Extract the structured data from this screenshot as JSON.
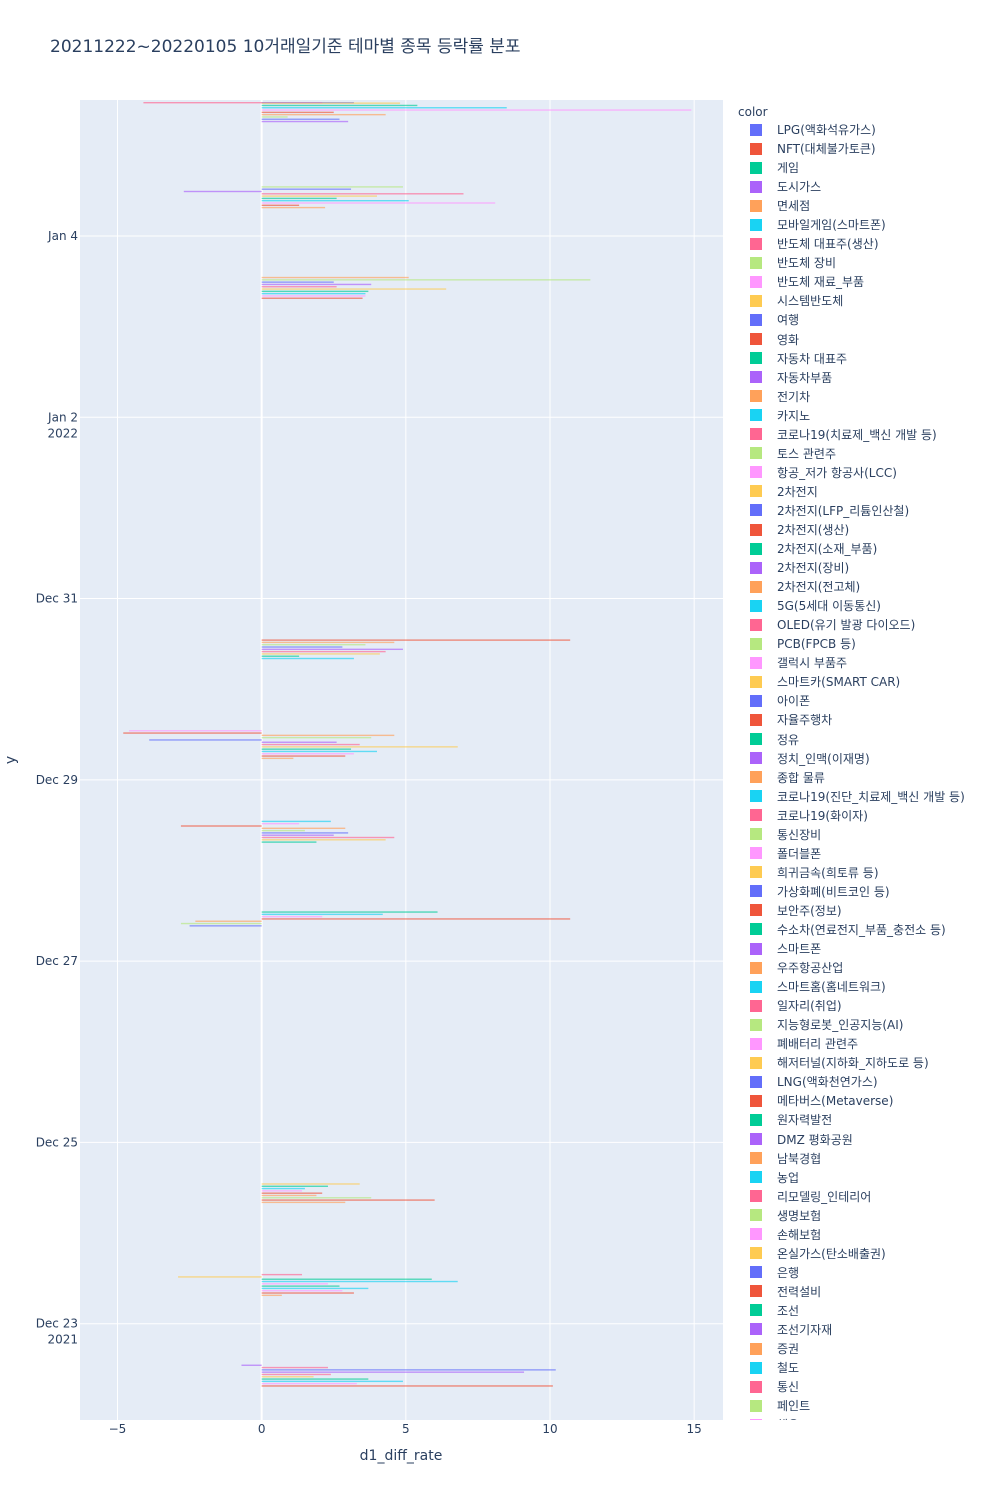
{
  "chart_data": {
    "type": "bar",
    "orientation": "horizontal",
    "title": "20211222~20220105 10거래일기준 테마별 종목 등락률 분포",
    "xlabel": "d1_diff_rate",
    "ylabel": "y",
    "xlim": [
      -6.3,
      16
    ],
    "x_ticks": [
      -5,
      0,
      5,
      10,
      15
    ],
    "y_ticks": [
      {
        "date": "2021-12-23",
        "label": "Dec 23",
        "sub": "2021"
      },
      {
        "date": "2021-12-25",
        "label": "Dec 25",
        "sub": ""
      },
      {
        "date": "2021-12-27",
        "label": "Dec 27",
        "sub": ""
      },
      {
        "date": "2021-12-29",
        "label": "Dec 29",
        "sub": ""
      },
      {
        "date": "2021-12-31",
        "label": "Dec 31",
        "sub": ""
      },
      {
        "date": "2022-01-02",
        "label": "Jan 2",
        "sub": "2022"
      },
      {
        "date": "2022-01-04",
        "label": "Jan 4",
        "sub": ""
      }
    ],
    "ylim": [
      "2021-12-21T22:30",
      "2022-01-05T12:00"
    ],
    "legend_title": "color",
    "legend_position": "right",
    "grid": true,
    "series": [
      {
        "name": "LPG(액화석유가스)",
        "color": "#636efa"
      },
      {
        "name": "NFT(대체불가토큰)",
        "color": "#EF553B"
      },
      {
        "name": "게임",
        "color": "#00cc96"
      },
      {
        "name": "도시가스",
        "color": "#ab63fa"
      },
      {
        "name": "면세점",
        "color": "#FFA15A"
      },
      {
        "name": "모바일게임(스마트폰)",
        "color": "#19d3f3"
      },
      {
        "name": "반도체 대표주(생산)",
        "color": "#FF6692"
      },
      {
        "name": "반도체 장비",
        "color": "#B6E880"
      },
      {
        "name": "반도체 재료_부품",
        "color": "#FF97FF"
      },
      {
        "name": "시스템반도체",
        "color": "#FECB52"
      },
      {
        "name": "여행",
        "color": "#636efa"
      },
      {
        "name": "영화",
        "color": "#EF553B"
      },
      {
        "name": "자동차 대표주",
        "color": "#00cc96"
      },
      {
        "name": "자동차부품",
        "color": "#ab63fa"
      },
      {
        "name": "전기차",
        "color": "#FFA15A"
      },
      {
        "name": "카지노",
        "color": "#19d3f3"
      },
      {
        "name": "코로나19(치료제_백신 개발 등)",
        "color": "#FF6692"
      },
      {
        "name": "토스 관련주",
        "color": "#B6E880"
      },
      {
        "name": "항공_저가 항공사(LCC)",
        "color": "#FF97FF"
      },
      {
        "name": "2차전지",
        "color": "#FECB52"
      },
      {
        "name": "2차전지(LFP_리튬인산철)",
        "color": "#636efa"
      },
      {
        "name": "2차전지(생산)",
        "color": "#EF553B"
      },
      {
        "name": "2차전지(소재_부품)",
        "color": "#00cc96"
      },
      {
        "name": "2차전지(장비)",
        "color": "#ab63fa"
      },
      {
        "name": "2차전지(전고체)",
        "color": "#FFA15A"
      },
      {
        "name": "5G(5세대 이동통신)",
        "color": "#19d3f3"
      },
      {
        "name": "OLED(유기 발광 다이오드)",
        "color": "#FF6692"
      },
      {
        "name": "PCB(FPCB 등)",
        "color": "#B6E880"
      },
      {
        "name": "갤럭시 부품주",
        "color": "#FF97FF"
      },
      {
        "name": "스마트카(SMART CAR)",
        "color": "#FECB52"
      },
      {
        "name": "아이폰",
        "color": "#636efa"
      },
      {
        "name": "자율주행차",
        "color": "#EF553B"
      },
      {
        "name": "정유",
        "color": "#00cc96"
      },
      {
        "name": "정치_인맥(이재명)",
        "color": "#ab63fa"
      },
      {
        "name": "종합 물류",
        "color": "#FFA15A"
      },
      {
        "name": "코로나19(진단_치료제_백신 개발 등)",
        "color": "#19d3f3"
      },
      {
        "name": "코로나19(화이자)",
        "color": "#FF6692"
      },
      {
        "name": "통신장비",
        "color": "#B6E880"
      },
      {
        "name": "폴더블폰",
        "color": "#FF97FF"
      },
      {
        "name": "희귀금속(희토류 등)",
        "color": "#FECB52"
      },
      {
        "name": "가상화폐(비트코인 등)",
        "color": "#636efa"
      },
      {
        "name": "보안주(정보)",
        "color": "#EF553B"
      },
      {
        "name": "수소차(연료전지_부품_충전소 등)",
        "color": "#00cc96"
      },
      {
        "name": "스마트폰",
        "color": "#ab63fa"
      },
      {
        "name": "우주항공산업",
        "color": "#FFA15A"
      },
      {
        "name": "스마트홈(홈네트워크)",
        "color": "#19d3f3"
      },
      {
        "name": "일자리(취업)",
        "color": "#FF6692"
      },
      {
        "name": "지능형로봇_인공지능(AI)",
        "color": "#B6E880"
      },
      {
        "name": "폐배터리 관련주",
        "color": "#FF97FF"
      },
      {
        "name": "해저터널(지하화_지하도로 등)",
        "color": "#FECB52"
      },
      {
        "name": "LNG(액화천연가스)",
        "color": "#636efa"
      },
      {
        "name": "메타버스(Metaverse)",
        "color": "#EF553B"
      },
      {
        "name": "원자력발전",
        "color": "#00cc96"
      },
      {
        "name": "DMZ 평화공원",
        "color": "#ab63fa"
      },
      {
        "name": "남북경협",
        "color": "#FFA15A"
      },
      {
        "name": "농업",
        "color": "#19d3f3"
      },
      {
        "name": "리모델링_인테리어",
        "color": "#FF6692"
      },
      {
        "name": "생명보험",
        "color": "#B6E880"
      },
      {
        "name": "손해보험",
        "color": "#FF97FF"
      },
      {
        "name": "온실가스(탄소배출권)",
        "color": "#FECB52"
      },
      {
        "name": "은행",
        "color": "#636efa"
      },
      {
        "name": "전력설비",
        "color": "#EF553B"
      },
      {
        "name": "조선",
        "color": "#00cc96"
      },
      {
        "name": "조선기자재",
        "color": "#ab63fa"
      },
      {
        "name": "증권",
        "color": "#FFA15A"
      },
      {
        "name": "철도",
        "color": "#19d3f3"
      },
      {
        "name": "통신",
        "color": "#FF6692"
      },
      {
        "name": "페인트",
        "color": "#B6E880"
      },
      {
        "name": "해운",
        "color": "#FF97FF"
      }
    ],
    "bars": [
      {
        "date": "2022-01-05T10:00",
        "values": [
          3.2,
          2.1,
          -4.1,
          4.8,
          5.4,
          8.5,
          14.9,
          2.5,
          4.3,
          0.9,
          2.7,
          3.0
        ]
      },
      {
        "date": "2022-01-04T10:00",
        "values": [
          4.9,
          3.1,
          -2.7,
          7.0,
          4.0,
          2.6,
          5.1,
          8.1,
          1.3,
          2.2
        ]
      },
      {
        "date": "2022-01-03T10:00",
        "values": [
          5.1,
          11.4,
          2.5,
          3.8,
          2.6,
          6.4,
          3.7,
          3.6,
          3.6,
          3.5
        ]
      },
      {
        "date": "2021-12-30T10:00",
        "values": [
          10.7,
          4.6,
          3.6,
          2.8,
          4.9,
          4.3,
          4.1,
          1.3,
          3.2
        ]
      },
      {
        "date": "2021-12-29T10:00",
        "values": [
          -4.6,
          -4.8,
          4.6,
          3.8,
          -3.9,
          2.6,
          3.4,
          6.8,
          3.1,
          4.0,
          3.2,
          2.9,
          1.1
        ]
      },
      {
        "date": "2021-12-28T10:00",
        "values": [
          2.4,
          1.3,
          -2.8,
          2.9,
          1.5,
          3.0,
          2.5,
          4.6,
          4.3,
          1.9
        ]
      },
      {
        "date": "2021-12-27T10:00",
        "values": [
          6.1,
          4.2,
          2.1,
          10.7,
          -2.3,
          -2.8,
          -2.5
        ]
      },
      {
        "date": "2021-12-24T10:00",
        "values": [
          3.4,
          2.3,
          1.5,
          1.4,
          2.1,
          1.9,
          3.8,
          6.0,
          2.9
        ]
      },
      {
        "date": "2021-12-23T10:00",
        "values": [
          1.4,
          -2.9,
          5.9,
          6.8,
          2.3,
          2.7,
          3.7,
          2.8,
          3.2,
          0.7
        ]
      },
      {
        "date": "2021-12-22T10:00",
        "values": [
          -0.7,
          2.3,
          10.2,
          9.1,
          2.4,
          1.8,
          3.7,
          4.9,
          3.3,
          10.1
        ]
      }
    ]
  }
}
